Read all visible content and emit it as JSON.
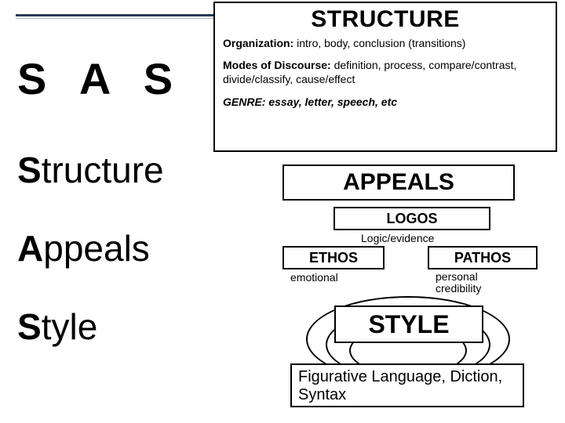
{
  "top": {
    "rule_color": "#2a3a5a"
  },
  "structure": {
    "title": "STRUCTURE",
    "organization_label": "Organization:",
    "organization_text": " intro, body, conclusion (transitions)",
    "modes_label": "Modes of Discourse:",
    "modes_text": " definition, process, compare/contrast, divide/classify,  cause/effect",
    "genre_label": "GENRE:",
    "genre_text": " essay, letter, speech, etc",
    "box_border": "#000000",
    "title_fontsize": 30
  },
  "sas": {
    "acronym": "S A S",
    "items": [
      {
        "first": "S",
        "rest": "tructure"
      },
      {
        "first": "A",
        "rest": "ppeals"
      },
      {
        "first": "S",
        "rest": "tyle"
      }
    ],
    "fontsize": 56,
    "item_fontsize": 46
  },
  "appeals": {
    "title": "APPEALS",
    "logos": "LOGOS",
    "logic": "Logic/evidence",
    "ethos": "ETHOS",
    "pathos": "PATHOS",
    "emotional": "emotional",
    "credibility": "personal\ncredibility"
  },
  "style": {
    "title": "STYLE",
    "figurative": "Figurative Language, Diction, Syntax"
  },
  "colors": {
    "text": "#000000",
    "background": "#ffffff",
    "rule_dark": "#2a3a5a",
    "rule_light": "#a9b5c9"
  }
}
